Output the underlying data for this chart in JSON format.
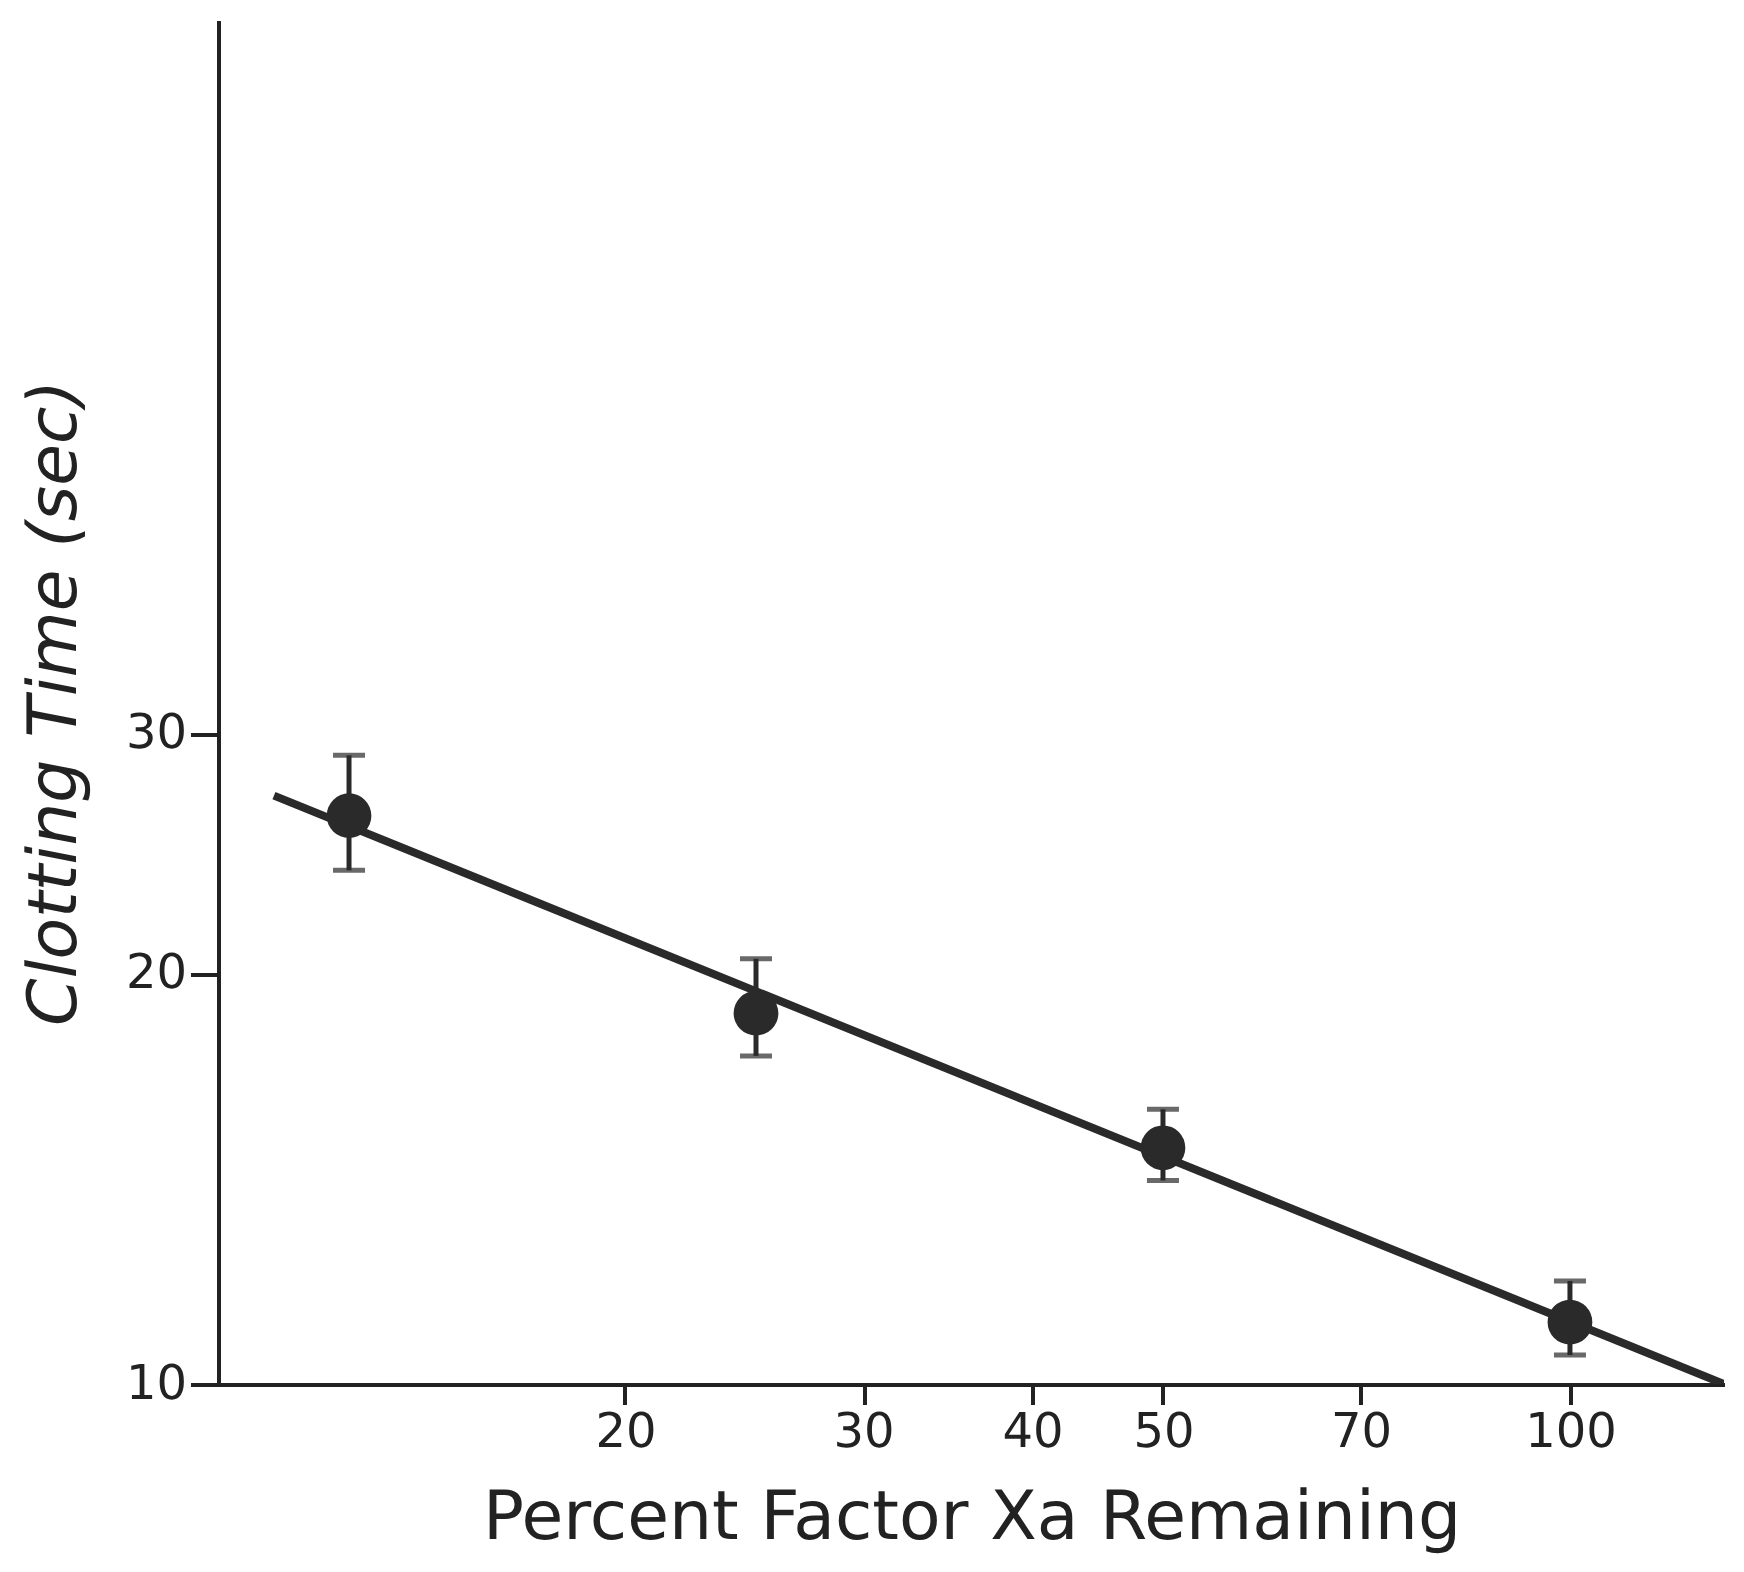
{
  "chart_data": {
    "type": "scatter",
    "xlabel": "Percent Factor Xa Remaining",
    "ylabel": "Clotting Time (sec)",
    "log": "xy",
    "grid": false,
    "marker": "circle",
    "xlim": [
      10,
      130
    ],
    "xticks": [
      20,
      30,
      40,
      50,
      70,
      100
    ],
    "ylim": [
      10,
      100
    ],
    "yticks": [
      10,
      20,
      30
    ],
    "series": [
      {
        "color": "#2a2a2a",
        "x": [
          12.5,
          25,
          50,
          100
        ],
        "values": [
          26.1,
          18.7,
          14.9,
          11.1
        ],
        "errors": [
          [
            23.8,
            28.9
          ],
          [
            17.4,
            20.5
          ],
          [
            14.1,
            15.9
          ],
          [
            10.5,
            11.9
          ]
        ]
      },
      {
        "type": "line",
        "color": "#2a2a2a",
        "line_style": "solid",
        "marker": "none",
        "x": [
          11,
          130
        ],
        "values": [
          27,
          10
        ]
      }
    ]
  }
}
